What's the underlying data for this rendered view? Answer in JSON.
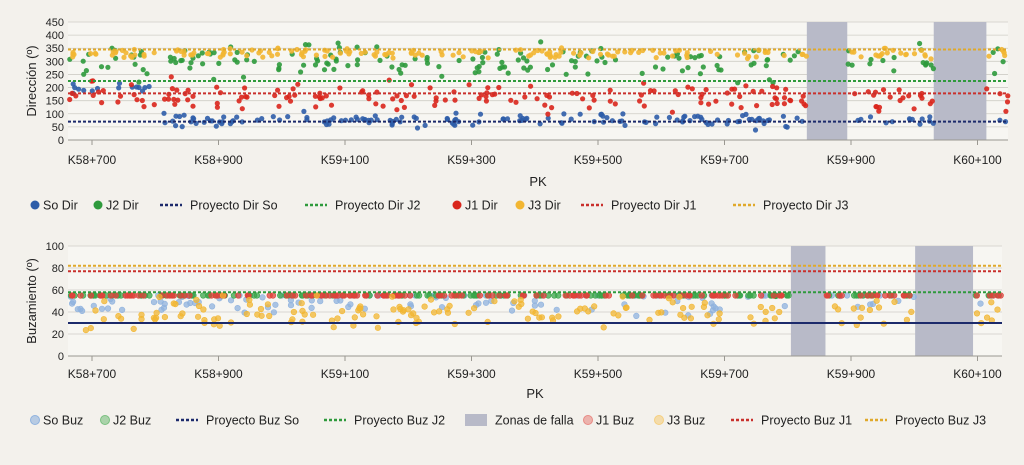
{
  "chart_data": [
    {
      "type": "scatter",
      "xlabel": "PK",
      "ylabel": "Dirección (º)",
      "ylim": [
        0,
        450
      ],
      "yticks": [
        "0",
        "50",
        "100",
        "150",
        "200",
        "250",
        "300",
        "350",
        "400",
        "450"
      ],
      "xticks": [
        "K58+700",
        "K58+900",
        "K59+100",
        "K59+300",
        "K59+500",
        "K59+700",
        "K59+900",
        "K60+100"
      ],
      "grid": true,
      "series": [
        {
          "name": "So Dir",
          "color": "#2d5da8",
          "kind": "points",
          "center": 75,
          "spread": 25
        },
        {
          "name": "J2 Dir",
          "color": "#2e9a3c",
          "kind": "points",
          "center": 300,
          "spread": 70
        },
        {
          "name": "J1 Dir",
          "color": "#d9261c",
          "kind": "points",
          "center": 160,
          "spread": 60
        },
        {
          "name": "J3 Dir",
          "color": "#f2b632",
          "kind": "points",
          "center": 330,
          "spread": 20
        },
        {
          "name": "Proyecto Dir So",
          "color": "#1c2a6b",
          "kind": "line",
          "value": 70
        },
        {
          "name": "Proyecto Dir J2",
          "color": "#2e9a3c",
          "kind": "line",
          "value": 225
        },
        {
          "name": "Proyecto Dir J1",
          "color": "#c9302c",
          "kind": "line",
          "value": 178
        },
        {
          "name": "Proyecto Dir J3",
          "color": "#e0a92a",
          "kind": "line",
          "value": 345
        }
      ],
      "fault_zones": [
        [
          0.786,
          0.829
        ],
        [
          0.921,
          0.977
        ]
      ]
    },
    {
      "type": "scatter",
      "xlabel": "PK",
      "ylabel": "Buzamiento (º)",
      "ylim": [
        0,
        100
      ],
      "yticks": [
        "0",
        "20",
        "40",
        "60",
        "80",
        "100"
      ],
      "xticks": [
        "K58+700",
        "K58+900",
        "K59+100",
        "K59+300",
        "K59+500",
        "K59+700",
        "K59+900",
        "K60+100"
      ],
      "grid": true,
      "series": [
        {
          "name": "So Buz",
          "color": "#8fb2de",
          "kind": "points",
          "center": 55,
          "spread": 20
        },
        {
          "name": "J2 Buz",
          "color": "#3aa64a",
          "kind": "points",
          "center": 72,
          "spread": 18
        },
        {
          "name": "Proyecto Buz So",
          "color": "#1c2a6b",
          "kind": "line",
          "value": 30
        },
        {
          "name": "Proyecto Buz J2",
          "color": "#2e9a3c",
          "kind": "line",
          "value": 58
        },
        {
          "name": "Zonas de falla",
          "color": "#b8bac8",
          "kind": "zone"
        },
        {
          "name": "J1 Buz",
          "color": "#e0413a",
          "kind": "points",
          "center": 72,
          "spread": 12
        },
        {
          "name": "J3 Buz",
          "color": "#f2b632",
          "kind": "points",
          "center": 40,
          "spread": 15
        },
        {
          "name": "Proyecto Buz J1",
          "color": "#c9302c",
          "kind": "line",
          "value": 77
        },
        {
          "name": "Proyecto Buz J3",
          "color": "#e0a92a",
          "kind": "line",
          "value": 82
        }
      ],
      "fault_zones": [
        [
          0.774,
          0.811
        ],
        [
          0.907,
          0.969
        ]
      ]
    }
  ],
  "legends": [
    {
      "items": [
        {
          "label": "So Dir",
          "kind": "dot",
          "color": "#2d5da8"
        },
        {
          "label": "J2 Dir",
          "kind": "dot",
          "color": "#2e9a3c"
        },
        {
          "label": "Proyecto Dir So",
          "kind": "dash",
          "color": "#1c2a6b"
        },
        {
          "label": "Proyecto Dir J2",
          "kind": "dash",
          "color": "#2e9a3c"
        },
        {
          "label": "J1 Dir",
          "kind": "dot",
          "color": "#d9261c"
        },
        {
          "label": "J3 Dir",
          "kind": "dot",
          "color": "#f2b632"
        },
        {
          "label": "Proyecto Dir J1",
          "kind": "dash",
          "color": "#c9302c"
        },
        {
          "label": "Proyecto Dir J3",
          "kind": "dash",
          "color": "#e0a92a"
        }
      ]
    },
    {
      "items": [
        {
          "label": "So Buz",
          "kind": "ring",
          "color": "#8fb2de"
        },
        {
          "label": "J2 Buz",
          "kind": "ring",
          "color": "#79c07f"
        },
        {
          "label": "Proyecto Buz So",
          "kind": "dash",
          "color": "#1c2a6b"
        },
        {
          "label": "Proyecto Buz J2",
          "kind": "dash",
          "color": "#2e9a3c"
        },
        {
          "label": "Zonas de falla",
          "kind": "box",
          "color": "#b8bac8"
        },
        {
          "label": "J1 Buz",
          "kind": "ring",
          "color": "#e88a84"
        },
        {
          "label": "J3 Buz",
          "kind": "ring",
          "color": "#f5cf7e"
        },
        {
          "label": "Proyecto Buz J1",
          "kind": "dash",
          "color": "#c9302c"
        },
        {
          "label": "Proyecto Buz J3",
          "kind": "dash",
          "color": "#e0a92a"
        }
      ]
    }
  ]
}
